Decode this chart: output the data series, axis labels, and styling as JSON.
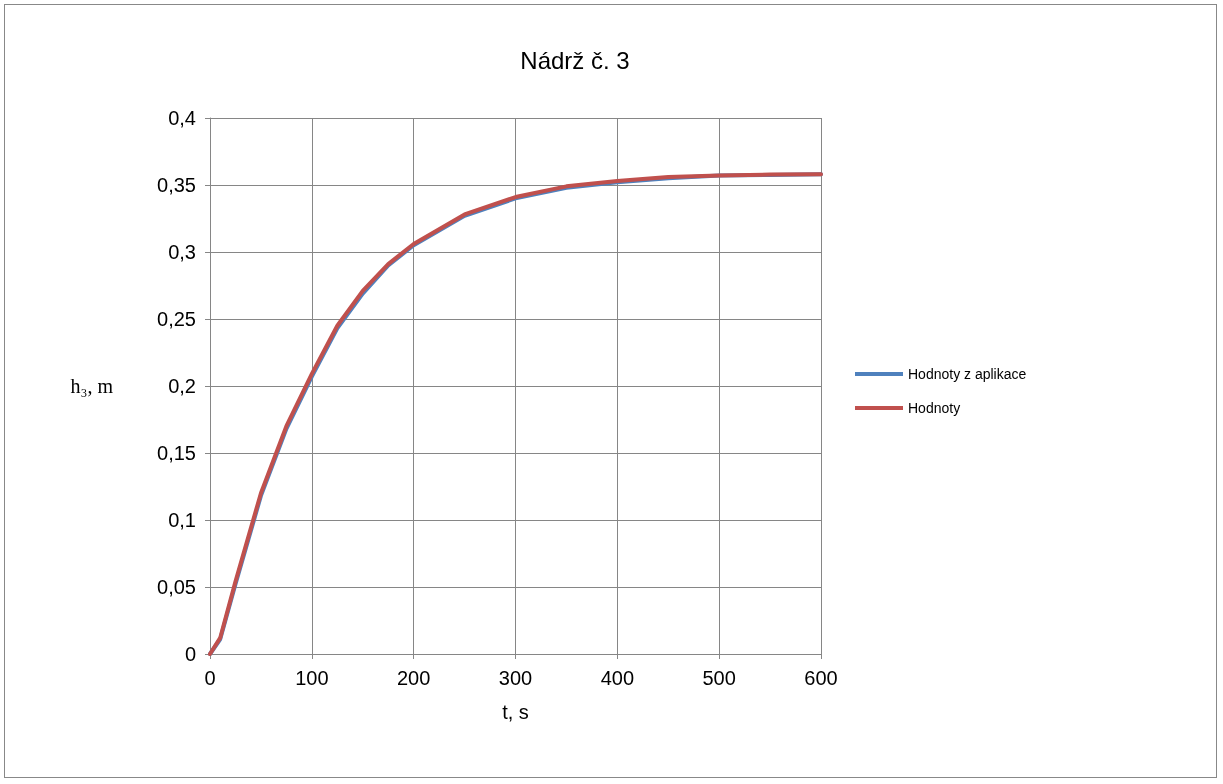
{
  "chart_data": {
    "type": "line",
    "title": "Nádrž č. 3",
    "xlabel": "t, s",
    "ylabel": "h₃, m",
    "xlim": [
      0,
      600
    ],
    "xticks": [
      0,
      100,
      200,
      300,
      400,
      500,
      600
    ],
    "ylim": [
      0,
      0.4
    ],
    "yticks": [
      0,
      {
        "value": 0.05,
        "label": "0,05"
      },
      {
        "value": 0.1,
        "label": "0,1"
      },
      {
        "value": 0.15,
        "label": "0,15"
      },
      {
        "value": 0.2,
        "label": "0,2"
      },
      {
        "value": 0.25,
        "label": "0,25"
      },
      {
        "value": 0.3,
        "label": "0,3"
      },
      {
        "value": 0.35,
        "label": "0,35"
      },
      {
        "value": 0.4,
        "label": "0,4"
      }
    ],
    "grid": true,
    "legend": "right",
    "marker": "none",
    "line_style": "solid",
    "series": [
      {
        "name": "Hodnoty z aplikace",
        "color": "#4f81bd",
        "x": [
          0,
          10,
          25,
          50,
          75,
          100,
          125,
          150,
          175,
          200,
          250,
          300,
          350,
          400,
          450,
          500,
          550,
          600
        ],
        "values": [
          0,
          0.011,
          0.052,
          0.118,
          0.168,
          0.207,
          0.243,
          0.269,
          0.29,
          0.305,
          0.327,
          0.34,
          0.348,
          0.352,
          0.355,
          0.357,
          0.3575,
          0.358
        ]
      },
      {
        "name": "Hodnoty",
        "color": "#c0504d",
        "x": [
          0,
          10,
          25,
          50,
          75,
          100,
          125,
          150,
          175,
          200,
          250,
          300,
          350,
          400,
          450,
          500,
          550,
          600
        ],
        "values": [
          0,
          0.012,
          0.054,
          0.12,
          0.17,
          0.209,
          0.245,
          0.271,
          0.291,
          0.306,
          0.328,
          0.341,
          0.349,
          0.353,
          0.356,
          0.357,
          0.3578,
          0.358
        ]
      }
    ]
  }
}
